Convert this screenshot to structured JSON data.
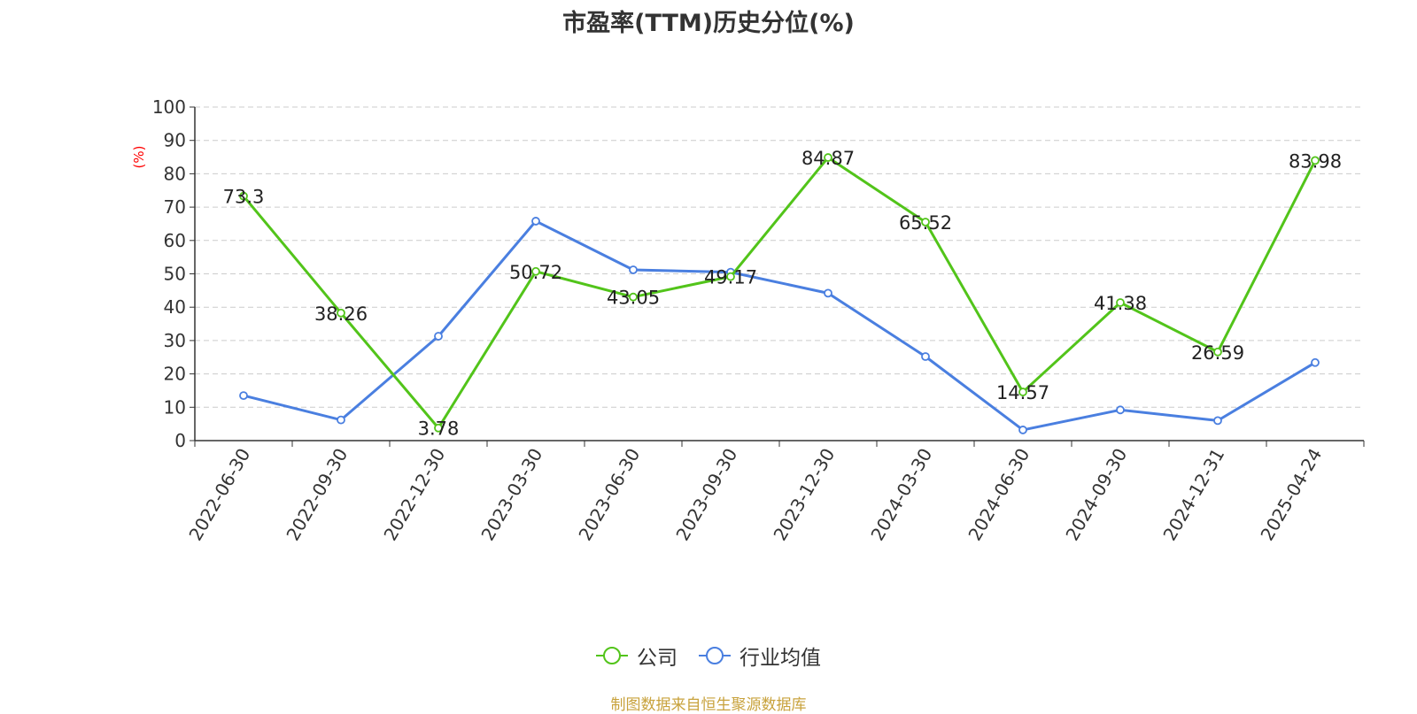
{
  "title": "市盈率(TTM)历史分位(%)",
  "source": "制图数据来自恒生聚源数据库",
  "chart_data": {
    "type": "line",
    "title": "市盈率(TTM)历史分位(%)",
    "ylabel": "(%)",
    "ylabel_color": "#ff0000",
    "ylim": [
      0,
      100
    ],
    "yticks": [
      0,
      10,
      20,
      30,
      40,
      50,
      60,
      70,
      80,
      90,
      100
    ],
    "grid": true,
    "legend_position": "bottom-center",
    "categories": [
      "2022-06-30",
      "2022-09-30",
      "2022-12-30",
      "2023-03-30",
      "2023-06-30",
      "2023-09-30",
      "2023-12-30",
      "2024-03-30",
      "2024-06-30",
      "2024-09-30",
      "2024-12-31",
      "2025-04-24"
    ],
    "series": [
      {
        "name": "公司",
        "color": "#52c41a",
        "show_labels": true,
        "values": [
          73.3,
          38.26,
          3.78,
          50.72,
          43.05,
          49.17,
          84.87,
          65.52,
          14.57,
          41.38,
          26.59,
          83.98
        ]
      },
      {
        "name": "行业均值",
        "color": "#4a7fe0",
        "show_labels": false,
        "values": [
          13.5,
          6.2,
          31.3,
          65.8,
          51.2,
          50.5,
          44.2,
          25.2,
          3.2,
          9.2,
          6.0,
          23.4
        ]
      }
    ]
  }
}
